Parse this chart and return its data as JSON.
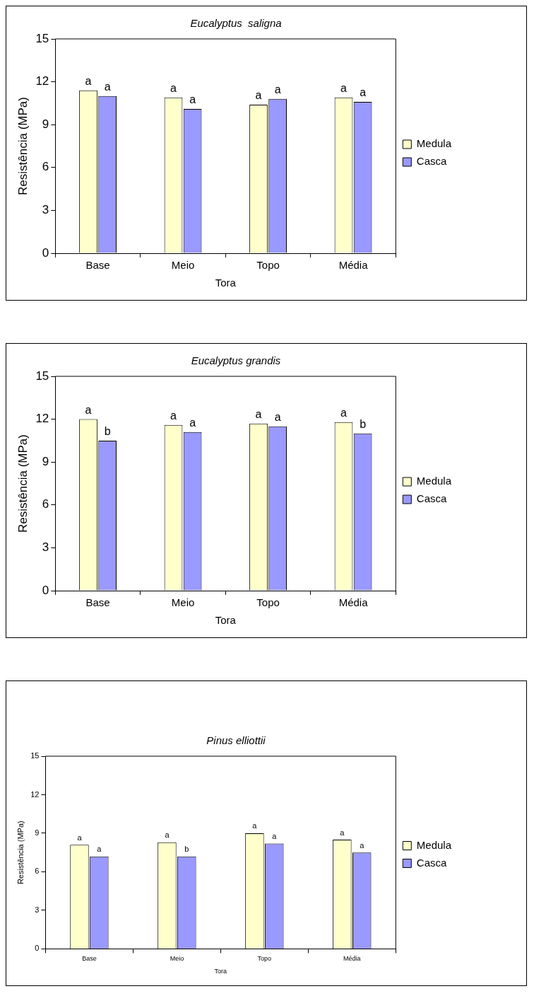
{
  "chart_data": [
    {
      "type": "bar",
      "title": "Eucalyptus  saligna",
      "xlabel": "Tora",
      "ylabel": "Resistência (MPa)",
      "categories": [
        "Base",
        "Meio",
        "Topo",
        "Média"
      ],
      "series": [
        {
          "name": "Medula",
          "color": "#ffffcc",
          "values": [
            11.4,
            10.9,
            10.4,
            10.9
          ]
        },
        {
          "name": "Casca",
          "color": "#9999ff",
          "values": [
            11.0,
            10.1,
            10.8,
            10.6
          ]
        }
      ],
      "ylim": [
        0,
        15
      ],
      "yticks": [
        0,
        3,
        6,
        9,
        12,
        15
      ],
      "grid": false,
      "legend": "right",
      "annotations": [
        {
          "text": "a",
          "x": "Base",
          "y": 11.4
        },
        {
          "text": "a",
          "x": "Base",
          "y": 11.0
        },
        {
          "text": "a",
          "x": "Meio",
          "y": 10.9
        },
        {
          "text": "a",
          "x": "Meio",
          "y": 10.1
        },
        {
          "text": "a",
          "x": "Topo",
          "y": 10.4
        },
        {
          "text": "a",
          "x": "Topo",
          "y": 10.8
        },
        {
          "text": "a",
          "x": "Média",
          "y": 10.9
        },
        {
          "text": "a",
          "x": "Média",
          "y": 10.6
        }
      ]
    },
    {
      "type": "bar",
      "title": "Eucalyptus grandis",
      "xlabel": "Tora",
      "ylabel": "Resistência (MPa)",
      "categories": [
        "Base",
        "Meio",
        "Topo",
        "Média"
      ],
      "series": [
        {
          "name": "Medula",
          "color": "#ffffcc",
          "values": [
            12.0,
            11.6,
            11.7,
            11.8
          ]
        },
        {
          "name": "Casca",
          "color": "#9999ff",
          "values": [
            10.5,
            11.1,
            11.5,
            11.0
          ]
        }
      ],
      "ylim": [
        0,
        15
      ],
      "yticks": [
        0,
        3,
        6,
        9,
        12,
        15
      ],
      "grid": false,
      "legend": "right",
      "annotations": [
        {
          "text": "a",
          "x": "Base",
          "y": 12.0
        },
        {
          "text": "b",
          "x": "Base",
          "y": 10.5
        },
        {
          "text": "a",
          "x": "Meio",
          "y": 11.6
        },
        {
          "text": "a",
          "x": "Meio",
          "y": 11.1
        },
        {
          "text": "a",
          "x": "Topo",
          "y": 11.7
        },
        {
          "text": "a",
          "x": "Topo",
          "y": 11.5
        },
        {
          "text": "a",
          "x": "Média",
          "y": 11.8
        },
        {
          "text": "b",
          "x": "Média",
          "y": 11.0
        }
      ]
    },
    {
      "type": "bar",
      "title": "Pinus elliottii",
      "xlabel": "Tora",
      "ylabel": "Resistência (MPa)",
      "categories": [
        "Base",
        "Meio",
        "Topo",
        "Média"
      ],
      "series": [
        {
          "name": "Medula",
          "color": "#ffffcc",
          "values": [
            8.1,
            8.3,
            9.0,
            8.5
          ]
        },
        {
          "name": "Casca",
          "color": "#9999ff",
          "values": [
            7.2,
            7.2,
            8.2,
            7.5
          ]
        }
      ],
      "ylim": [
        0,
        15
      ],
      "yticks": [
        0,
        3,
        6,
        9,
        12,
        15
      ],
      "grid": false,
      "legend": "right",
      "annotations": [
        {
          "text": "a",
          "x": "Base",
          "y": 8.1
        },
        {
          "text": "a",
          "x": "Base",
          "y": 7.2
        },
        {
          "text": "a",
          "x": "Meio",
          "y": 8.3
        },
        {
          "text": "b",
          "x": "Meio",
          "y": 7.2
        },
        {
          "text": "a",
          "x": "Topo",
          "y": 9.0
        },
        {
          "text": "a",
          "x": "Topo",
          "y": 8.2
        },
        {
          "text": "a",
          "x": "Média",
          "y": 8.5
        },
        {
          "text": "a",
          "x": "Média",
          "y": 7.5
        }
      ]
    }
  ]
}
